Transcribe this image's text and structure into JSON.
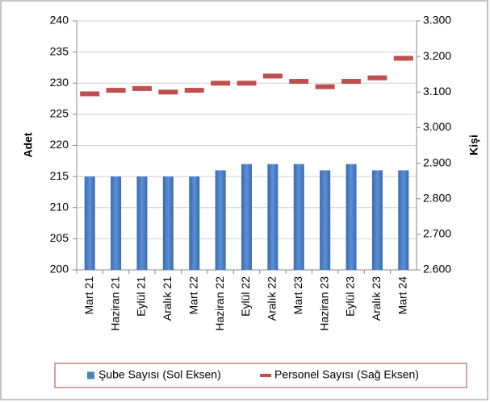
{
  "chart_data": {
    "type": "bar",
    "categories": [
      "Mart 21",
      "Haziran 21",
      "Eylül 21",
      "Aralık 21",
      "Mart 22",
      "Haziran 22",
      "Eylül 22",
      "Aralık 22",
      "Mart 23",
      "Haziran 23",
      "Eylül 23",
      "Aralık 23",
      "Mart 24"
    ],
    "series": [
      {
        "name": "Şube Sayısı (Sol Eksen)",
        "type": "bar",
        "color": "#4f81bd",
        "values": [
          215,
          215,
          215,
          215,
          215,
          216,
          217,
          217,
          217,
          216,
          217,
          216,
          216
        ]
      },
      {
        "name": "Personel Sayısı (Sağ Eksen)",
        "type": "line",
        "marker": "dash",
        "axis": "y2",
        "color": "#c0504d",
        "values": [
          3095,
          3105,
          3110,
          3100,
          3105,
          3125,
          3125,
          3145,
          3130,
          3115,
          3130,
          3140,
          3195
        ]
      }
    ],
    "ylabel": "Adet",
    "y2label": "Kişi",
    "ylim": [
      200,
      240
    ],
    "yticks": [
      200,
      205,
      210,
      215,
      220,
      225,
      230,
      235,
      240
    ],
    "y2lim": [
      2600,
      3300
    ],
    "y2ticks": [
      {
        "value": 2600,
        "label": "2.600"
      },
      {
        "value": 2700,
        "label": "2.700"
      },
      {
        "value": 2800,
        "label": "2.800"
      },
      {
        "value": 2900,
        "label": "2.900"
      },
      {
        "value": 3000,
        "label": "3.000"
      },
      {
        "value": 3100,
        "label": "3.100"
      },
      {
        "value": 3200,
        "label": "3.200"
      },
      {
        "value": 3300,
        "label": "3.300"
      }
    ],
    "grid": true,
    "legend": "bottom"
  }
}
